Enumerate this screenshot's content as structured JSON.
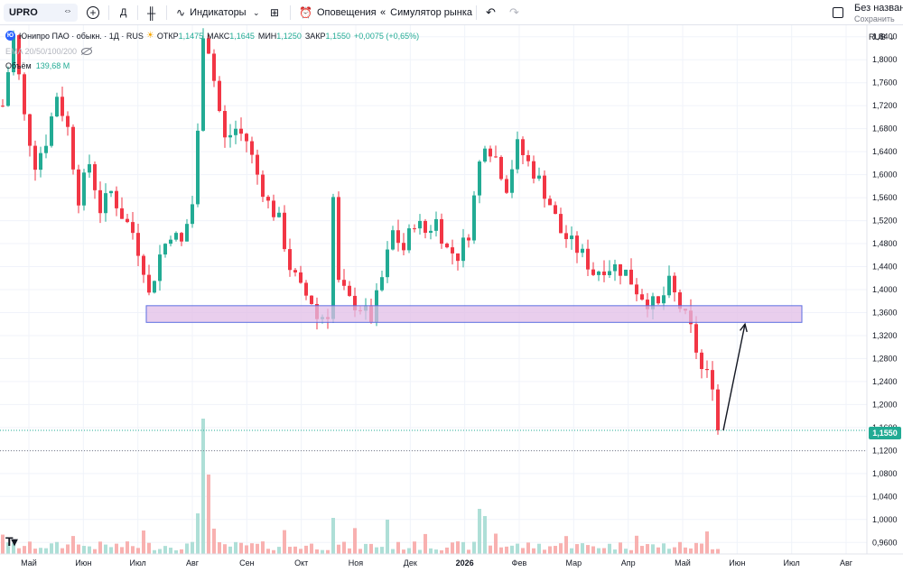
{
  "toolbar": {
    "symbol": "UPRO",
    "interval": "Д",
    "indicators_label": "Индикаторы",
    "alerts_label": "Оповещения",
    "replay_label": "Симулятор рынка",
    "layout_name": "Без назван",
    "layout_sub": "Сохранить"
  },
  "legend": {
    "badge": "Ю",
    "title": "Юнипро ПАО · обыкн. · 1Д · RUS",
    "open_label": "ОТКР",
    "open": "1,1475",
    "high_label": "МАКС",
    "high": "1,1645",
    "low_label": "МИН",
    "low": "1,1250",
    "close_label": "ЗАКР",
    "close": "1,1550",
    "change": "+0,0075 (+0,65%)",
    "ema_label": "EMA 20/50/100/200",
    "volume_label": "Объём",
    "volume_value": "139,68 M"
  },
  "currency": "RUB",
  "last_price_label": "1,1550",
  "colors": {
    "up": "#22ab94",
    "down": "#f23645",
    "zone_fill": "#e1bee7",
    "zone_border": "#5b6ee1",
    "grid": "#f0f3fa"
  },
  "chart_data": {
    "type": "candlestick",
    "y_axis": {
      "min": 0.94,
      "max": 1.86,
      "ticks": [
        "1,8400",
        "1,8000",
        "1,7600",
        "1,7200",
        "1,6800",
        "1,6400",
        "1,6000",
        "1,5600",
        "1,5200",
        "1,4800",
        "1,4400",
        "1,4000",
        "1,3600",
        "1,3200",
        "1,2800",
        "1,2400",
        "1,2000",
        "1,1600",
        "1,1200",
        "1,0800",
        "1,0400",
        "1,0000",
        "0,9600"
      ]
    },
    "x_axis": {
      "labels": [
        "Май",
        "Июн",
        "Июл",
        "Авг",
        "Сен",
        "Окт",
        "Ноя",
        "Дек",
        "2026",
        "Фев",
        "Мар",
        "Апр",
        "Май",
        "Июн",
        "Июл",
        "Авг"
      ]
    },
    "price_path": [
      [
        0,
        1.72
      ],
      [
        2,
        1.84
      ],
      [
        4,
        1.7
      ],
      [
        6,
        1.62
      ],
      [
        8,
        1.66
      ],
      [
        10,
        1.74
      ],
      [
        12,
        1.68
      ],
      [
        14,
        1.56
      ],
      [
        16,
        1.62
      ],
      [
        18,
        1.54
      ],
      [
        20,
        1.57
      ],
      [
        22,
        1.53
      ],
      [
        24,
        1.5
      ],
      [
        26,
        1.44
      ],
      [
        27,
        1.39
      ],
      [
        29,
        1.46
      ],
      [
        31,
        1.5
      ],
      [
        33,
        1.48
      ],
      [
        35,
        1.55
      ],
      [
        36,
        1.67
      ],
      [
        37,
        1.85
      ],
      [
        38,
        1.82
      ],
      [
        40,
        1.71
      ],
      [
        41,
        1.66
      ],
      [
        43,
        1.68
      ],
      [
        45,
        1.66
      ],
      [
        47,
        1.6
      ],
      [
        49,
        1.55
      ],
      [
        51,
        1.52
      ],
      [
        53,
        1.44
      ],
      [
        55,
        1.4
      ],
      [
        57,
        1.38
      ],
      [
        58,
        1.35
      ],
      [
        60,
        1.36
      ],
      [
        61,
        1.56
      ],
      [
        62,
        1.41
      ],
      [
        64,
        1.38
      ],
      [
        66,
        1.37
      ],
      [
        68,
        1.35
      ],
      [
        70,
        1.42
      ],
      [
        72,
        1.5
      ],
      [
        74,
        1.47
      ],
      [
        76,
        1.52
      ],
      [
        78,
        1.5
      ],
      [
        80,
        1.52
      ],
      [
        82,
        1.47
      ],
      [
        84,
        1.46
      ],
      [
        86,
        1.5
      ],
      [
        88,
        1.62
      ],
      [
        89,
        1.66
      ],
      [
        91,
        1.63
      ],
      [
        93,
        1.58
      ],
      [
        95,
        1.65
      ],
      [
        97,
        1.62
      ],
      [
        99,
        1.59
      ],
      [
        101,
        1.55
      ],
      [
        103,
        1.5
      ],
      [
        105,
        1.48
      ],
      [
        107,
        1.46
      ],
      [
        109,
        1.43
      ],
      [
        111,
        1.44
      ],
      [
        113,
        1.44
      ],
      [
        115,
        1.43
      ],
      [
        117,
        1.4
      ],
      [
        119,
        1.38
      ],
      [
        121,
        1.37
      ],
      [
        123,
        1.41
      ],
      [
        125,
        1.37
      ],
      [
        127,
        1.33
      ],
      [
        129,
        1.26
      ],
      [
        131,
        1.24
      ],
      [
        132,
        1.15
      ]
    ],
    "support_zone": {
      "low": 1.343,
      "high": 1.372,
      "from_index": 27,
      "to_index": 147
    },
    "arrow": {
      "from": [
        133,
        1.155
      ],
      "to": [
        137,
        1.34
      ]
    },
    "last_price": 1.155,
    "low_line": 1.1195
  }
}
